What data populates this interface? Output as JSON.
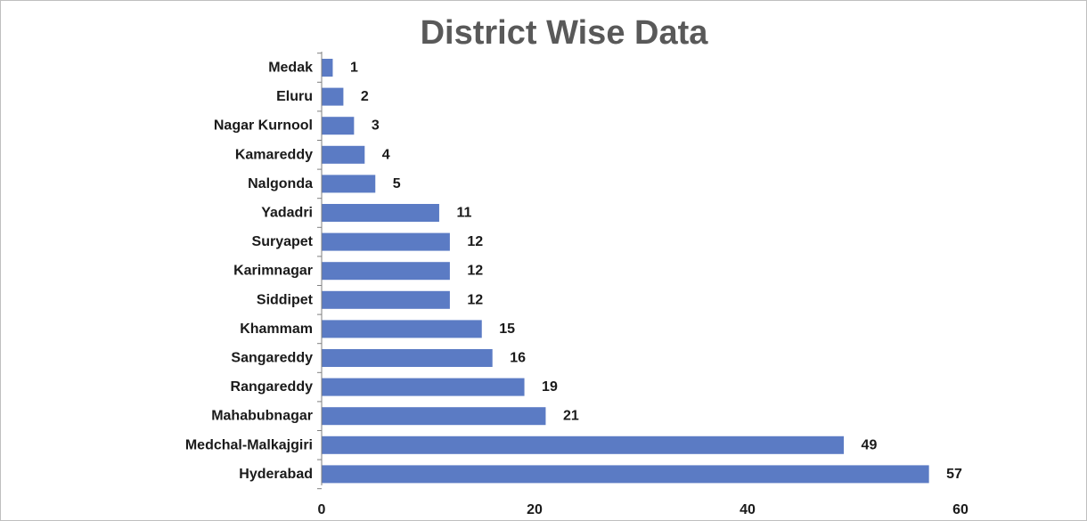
{
  "chart_data": {
    "type": "bar",
    "orientation": "horizontal",
    "title": "District Wise Data",
    "categories": [
      "Medak",
      "Eluru",
      "Nagar Kurnool",
      "Kamareddy",
      "Nalgonda",
      "Yadadri",
      "Suryapet",
      "Karimnagar",
      "Siddipet",
      "Khammam",
      "Sangareddy",
      "Rangareddy",
      "Mahabubnagar",
      "Medchal-Malkajgiri",
      "Hyderabad"
    ],
    "values": [
      1,
      2,
      3,
      4,
      5,
      11,
      12,
      12,
      12,
      15,
      16,
      19,
      21,
      49,
      57
    ],
    "xlim": [
      0,
      60
    ],
    "xticks": [
      0,
      20,
      40,
      60
    ],
    "grid": false,
    "data_labels": true,
    "bar_color": "#5b7bc4"
  }
}
